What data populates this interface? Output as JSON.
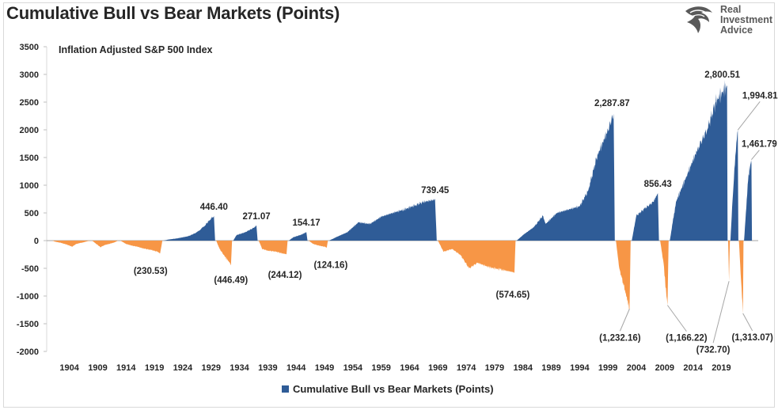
{
  "title": "Cumulative Bull vs Bear Markets (Points)",
  "logo": {
    "lines": [
      "Real",
      "Investment",
      "Advice"
    ],
    "icon": "eagle-head-icon"
  },
  "colors": {
    "bull": "#2f5c97",
    "bear": "#f79646",
    "axis": "#262626",
    "tick": "#bfbfbf"
  },
  "chart_data": {
    "type": "area",
    "subtitle": "Inflation Adjusted S&P 500 Index",
    "ylim": [
      -2000,
      3500
    ],
    "yticks": [
      3500,
      3000,
      2500,
      2000,
      1500,
      1000,
      500,
      0,
      -500,
      -1000,
      -1500,
      -2000
    ],
    "xlim": [
      1900,
      2023
    ],
    "xticks": [
      "1904",
      "1909",
      "1914",
      "1919",
      "1924",
      "1929",
      "1934",
      "1939",
      "1944",
      "1949",
      "1954",
      "1959",
      "1964",
      "1969",
      "1974",
      "1979",
      "1984",
      "1989",
      "1994",
      "1999",
      "2004",
      "2009",
      "2014",
      "2019"
    ],
    "grid": false,
    "legend_position": "bottom",
    "series": [
      {
        "name": "Cumulative Bull vs Bear Markets (Points)",
        "points": [
          [
            1901.0,
            0
          ],
          [
            1901.5,
            -20
          ],
          [
            1902.5,
            -40
          ],
          [
            1903.5,
            -70
          ],
          [
            1904.5,
            -110
          ],
          [
            1905.2,
            -60
          ],
          [
            1906.5,
            -30
          ],
          [
            1907.2,
            -10
          ],
          [
            1907.8,
            0
          ],
          [
            1908.0,
            0
          ],
          [
            1908.5,
            -40
          ],
          [
            1909.5,
            -120
          ],
          [
            1910.2,
            -80
          ],
          [
            1911.0,
            -60
          ],
          [
            1912.0,
            -30
          ],
          [
            1912.6,
            0
          ],
          [
            1913.0,
            0
          ],
          [
            1914.0,
            -60
          ],
          [
            1915.0,
            -90
          ],
          [
            1916.0,
            -110
          ],
          [
            1917.0,
            -140
          ],
          [
            1918.5,
            -170
          ],
          [
            1919.5,
            -200
          ],
          [
            1920.0,
            -230.53
          ],
          [
            1920.4,
            0
          ],
          [
            1920.6,
            0
          ],
          [
            1921.5,
            20
          ],
          [
            1923.0,
            40
          ],
          [
            1925.0,
            80
          ],
          [
            1926.5,
            150
          ],
          [
            1927.8,
            260
          ],
          [
            1928.8,
            380
          ],
          [
            1929.5,
            446.4
          ],
          [
            1929.7,
            0
          ],
          [
            1929.9,
            0
          ],
          [
            1930.5,
            -150
          ],
          [
            1931.5,
            -300
          ],
          [
            1932.3,
            -400
          ],
          [
            1932.5,
            -446.49
          ],
          [
            1932.7,
            0
          ],
          [
            1932.9,
            0
          ],
          [
            1933.5,
            100
          ],
          [
            1935.0,
            150
          ],
          [
            1936.5,
            230
          ],
          [
            1937.0,
            271.07
          ],
          [
            1937.2,
            0
          ],
          [
            1937.4,
            0
          ],
          [
            1938.0,
            -150
          ],
          [
            1939.0,
            -180
          ],
          [
            1940.5,
            -200
          ],
          [
            1941.5,
            -230
          ],
          [
            1942.3,
            -244.12
          ],
          [
            1942.5,
            0
          ],
          [
            1942.7,
            0
          ],
          [
            1943.5,
            60
          ],
          [
            1945.0,
            110
          ],
          [
            1945.8,
            154.17
          ],
          [
            1946.0,
            0
          ],
          [
            1946.2,
            0
          ],
          [
            1947.0,
            -60
          ],
          [
            1948.0,
            -90
          ],
          [
            1949.0,
            -110
          ],
          [
            1949.4,
            -124.16
          ],
          [
            1949.6,
            0
          ],
          [
            1949.8,
            0
          ],
          [
            1951.0,
            60
          ],
          [
            1953.0,
            150
          ],
          [
            1955.0,
            330
          ],
          [
            1957.0,
            300
          ],
          [
            1959.0,
            430
          ],
          [
            1961.0,
            500
          ],
          [
            1963.0,
            560
          ],
          [
            1965.0,
            640
          ],
          [
            1966.5,
            700
          ],
          [
            1968.5,
            739.45
          ],
          [
            1968.8,
            0
          ],
          [
            1969.0,
            0
          ],
          [
            1970.0,
            -200
          ],
          [
            1971.5,
            -150
          ],
          [
            1973.0,
            -260
          ],
          [
            1974.5,
            -500
          ],
          [
            1976.0,
            -400
          ],
          [
            1978.0,
            -480
          ],
          [
            1980.0,
            -520
          ],
          [
            1982.5,
            -574.65
          ],
          [
            1982.7,
            0
          ],
          [
            1982.9,
            0
          ],
          [
            1984.0,
            100
          ],
          [
            1986.0,
            250
          ],
          [
            1987.5,
            450
          ],
          [
            1988.0,
            300
          ],
          [
            1990.0,
            500
          ],
          [
            1992.0,
            560
          ],
          [
            1994.0,
            620
          ],
          [
            1995.5,
            900
          ],
          [
            1997.0,
            1500
          ],
          [
            1999.0,
            2000
          ],
          [
            2000.0,
            2287.87
          ],
          [
            2000.2,
            0
          ],
          [
            2000.4,
            0
          ],
          [
            2001.0,
            -500
          ],
          [
            2002.0,
            -900
          ],
          [
            2002.8,
            -1232.16
          ],
          [
            2003.0,
            0
          ],
          [
            2003.2,
            0
          ],
          [
            2004.0,
            450
          ],
          [
            2005.5,
            580
          ],
          [
            2007.0,
            700
          ],
          [
            2007.8,
            856.43
          ],
          [
            2008.0,
            0
          ],
          [
            2008.2,
            0
          ],
          [
            2008.8,
            -400
          ],
          [
            2009.3,
            -1000
          ],
          [
            2009.5,
            -1166.22
          ],
          [
            2009.7,
            0
          ],
          [
            2009.9,
            0
          ],
          [
            2011.0,
            700
          ],
          [
            2013.0,
            1200
          ],
          [
            2015.0,
            1700
          ],
          [
            2016.5,
            2000
          ],
          [
            2018.0,
            2500
          ],
          [
            2020.0,
            2800.51
          ],
          [
            2020.1,
            0
          ],
          [
            2020.2,
            0
          ],
          [
            2020.35,
            -732.7
          ],
          [
            2020.5,
            0
          ],
          [
            2020.6,
            0
          ],
          [
            2020.9,
            600
          ],
          [
            2021.3,
            1300
          ],
          [
            2021.9,
            1994.81
          ],
          [
            2022.0,
            0
          ],
          [
            2022.1,
            0
          ],
          [
            2022.4,
            -600
          ],
          [
            2022.8,
            -1313.07
          ],
          [
            2022.9,
            0
          ],
          [
            2023.0,
            0
          ],
          [
            2023.4,
            600
          ],
          [
            2023.8,
            1200
          ],
          [
            2024.3,
            1461.79
          ],
          [
            2024.4,
            0
          ]
        ]
      }
    ],
    "annotations": [
      {
        "text": "446.40",
        "x": 1929.5,
        "y": 446.4,
        "side": "above"
      },
      {
        "text": "(446.49)",
        "x": 1932.5,
        "y": -446.49,
        "side": "below"
      },
      {
        "text": "271.07",
        "x": 1937.0,
        "y": 271.07,
        "side": "above"
      },
      {
        "text": "(244.12)",
        "x": 1942.3,
        "y": -244.12,
        "side": "below"
      },
      {
        "text": "154.17",
        "x": 1945.8,
        "y": 154.17,
        "side": "above"
      },
      {
        "text": "(230.53)",
        "x": 1920.0,
        "y": -230.53,
        "side": "below"
      },
      {
        "text": "(124.16)",
        "x": 1949.4,
        "y": -124.16,
        "side": "below"
      },
      {
        "text": "739.45",
        "x": 1968.5,
        "y": 739.45,
        "side": "above"
      },
      {
        "text": "(574.65)",
        "x": 1982.5,
        "y": -574.65,
        "side": "below"
      },
      {
        "text": "2,287.87",
        "x": 2000.0,
        "y": 2287.87,
        "side": "above"
      },
      {
        "text": "(1,232.16)",
        "x": 2002.8,
        "y": -1232.16,
        "side": "below"
      },
      {
        "text": "856.43",
        "x": 2007.8,
        "y": 856.43,
        "side": "above"
      },
      {
        "text": "(1,166.22)",
        "x": 2009.5,
        "y": -1166.22,
        "side": "below"
      },
      {
        "text": "2,800.51",
        "x": 2020.0,
        "y": 2800.51,
        "side": "above"
      },
      {
        "text": "(732.70)",
        "x": 2020.35,
        "y": -732.7,
        "side": "below"
      },
      {
        "text": "1,994.81",
        "x": 2021.9,
        "y": 1994.81,
        "side": "above"
      },
      {
        "text": "(1,313.07)",
        "x": 2022.8,
        "y": -1313.07,
        "side": "below"
      },
      {
        "text": "1,461.79",
        "x": 2024.3,
        "y": 1461.79,
        "side": "above"
      }
    ]
  }
}
